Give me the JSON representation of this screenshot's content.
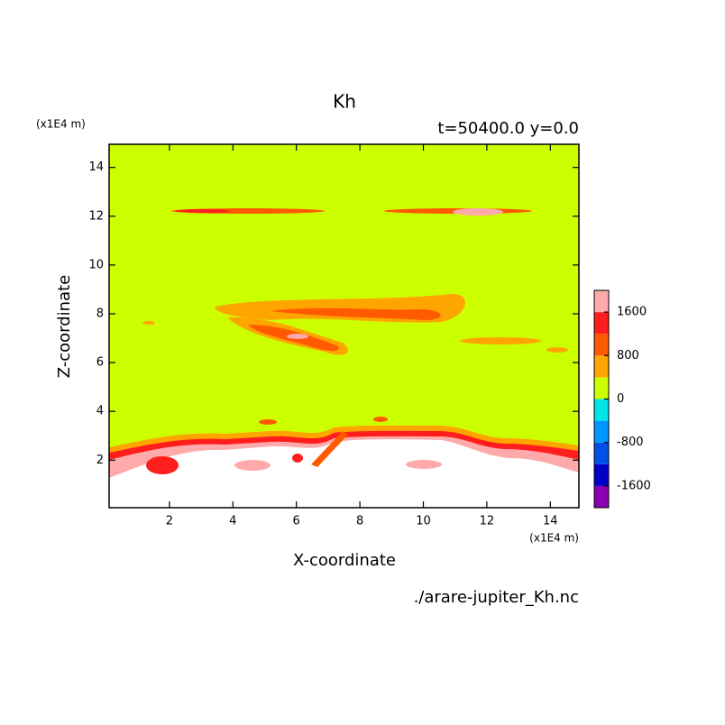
{
  "chart_data": {
    "type": "contour",
    "title": "Kh",
    "subtitle": "t=50400.0 y=0.0",
    "xlabel": "X-coordinate",
    "ylabel": "Z-coordinate",
    "x_unit": "(x1E4 m)",
    "y_unit": "(x1E4 m)",
    "footer": "./arare-jupiter_Kh.nc",
    "xlim": [
      0.1,
      14.9
    ],
    "ylim": [
      0.05,
      14.95
    ],
    "xticks": [
      2,
      4,
      6,
      8,
      10,
      12,
      14
    ],
    "yticks": [
      2,
      4,
      6,
      8,
      10,
      12,
      14
    ],
    "clim": [
      -2000,
      2000
    ],
    "cticks": [
      1600,
      800,
      0,
      -800,
      -1600
    ],
    "colors": [
      "#8c00b4",
      "#0000c8",
      "#0050e6",
      "#0096ff",
      "#00e6e6",
      "#ccff00",
      "#ffa500",
      "#ff5a00",
      "#ff1e1e",
      "#ffaaaa"
    ]
  }
}
